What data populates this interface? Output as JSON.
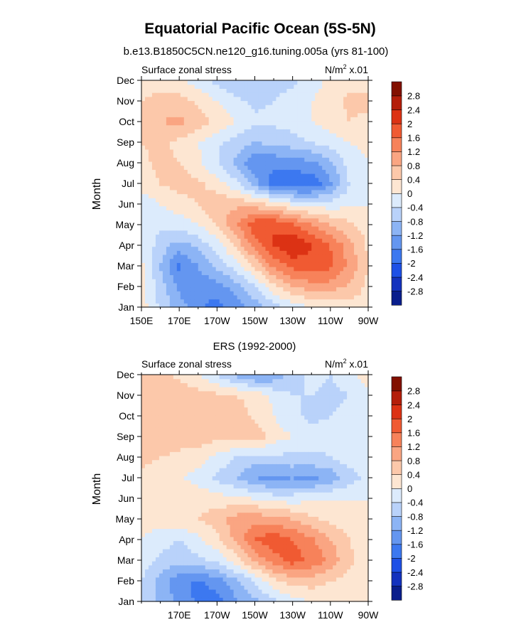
{
  "title": "Equatorial Pacific Ocean (5S-5N)",
  "colors": {
    "palette": [
      "#0a1e8c",
      "#1432be",
      "#1e50e6",
      "#3c78f0",
      "#6496f0",
      "#8cb4f5",
      "#b9d2fa",
      "#dcebfc",
      "#fde6d2",
      "#fcc8aa",
      "#faa582",
      "#f7825a",
      "#f05a32",
      "#dc3214",
      "#b41e0a",
      "#821000"
    ],
    "levels": [
      -2.8,
      -2.4,
      -2,
      -1.6,
      -1.2,
      -0.8,
      -0.4,
      0,
      0.4,
      0.8,
      1.2,
      1.6,
      2,
      2.4,
      2.8
    ]
  },
  "chart_data": [
    {
      "type": "heatmap",
      "title": "b.e13.B1850C5CN.ne120_g16.tuning.005a (yrs 81-100)",
      "left_label": "Surface zonal stress",
      "right_label": "N/m",
      "right_sup": "2",
      "right_suffix": " x.01",
      "xlabel": "",
      "ylabel": "Month",
      "x_ticks": [
        "150E",
        "170E",
        "170W",
        "150W",
        "130W",
        "110W",
        "90W"
      ],
      "x_tick_values": [
        150,
        170,
        190,
        210,
        230,
        250,
        270
      ],
      "xlim": [
        150,
        270
      ],
      "y_ticks": [
        "Jan",
        "Feb",
        "Mar",
        "Apr",
        "May",
        "Jun",
        "Jul",
        "Aug",
        "Sep",
        "Oct",
        "Nov",
        "Dec"
      ],
      "colorbar_labels": [
        "-2.8",
        "-2.4",
        "-2",
        "-1.6",
        "-1.2",
        "-0.8",
        "-0.4",
        "0",
        "0.4",
        "0.8",
        "1.2",
        "1.6",
        "2",
        "2.4",
        "2.8"
      ],
      "x": [
        150,
        160,
        170,
        180,
        190,
        200,
        210,
        220,
        230,
        240,
        250,
        260,
        270
      ],
      "z": [
        [
          0.2,
          -0.5,
          -1.0,
          -1.5,
          -1.8,
          -1.4,
          -1.0,
          -0.6,
          -0.3,
          0.0,
          0.1,
          0.2,
          0.3
        ],
        [
          0.2,
          -0.6,
          -1.3,
          -1.5,
          -1.4,
          -1.0,
          -0.5,
          0.3,
          0.8,
          1.0,
          1.0,
          0.7,
          0.3
        ],
        [
          0.1,
          -0.8,
          -1.7,
          -1.2,
          -0.7,
          -0.2,
          0.5,
          1.3,
          1.7,
          1.9,
          1.7,
          1.1,
          0.4
        ],
        [
          0.0,
          -0.6,
          -1.0,
          -0.7,
          -0.2,
          0.5,
          1.3,
          2.0,
          2.4,
          2.0,
          1.6,
          1.0,
          0.3
        ],
        [
          -0.2,
          -0.3,
          -0.2,
          0.0,
          0.4,
          1.2,
          1.9,
          2.0,
          1.7,
          1.2,
          0.8,
          0.5,
          0.2
        ],
        [
          -0.3,
          0.0,
          0.2,
          0.4,
          0.7,
          0.7,
          0.6,
          0.3,
          0.0,
          -0.2,
          -0.2,
          -0.1,
          0.0
        ],
        [
          0.2,
          0.4,
          0.6,
          0.5,
          0.2,
          -0.3,
          -1.0,
          -1.8,
          -2.0,
          -1.9,
          -1.3,
          -0.4,
          0.0
        ],
        [
          0.3,
          0.5,
          0.4,
          0.1,
          -0.4,
          -0.9,
          -1.5,
          -1.5,
          -1.4,
          -1.3,
          -0.9,
          -0.2,
          0.0
        ],
        [
          0.4,
          0.5,
          0.3,
          0.0,
          -0.3,
          -0.6,
          -0.8,
          -0.7,
          -0.6,
          -0.4,
          -0.2,
          0.0,
          0.1
        ],
        [
          0.5,
          0.8,
          0.9,
          0.6,
          0.3,
          0.0,
          -0.3,
          -0.3,
          -0.2,
          0.0,
          0.2,
          0.4,
          0.3
        ],
        [
          0.4,
          0.6,
          0.6,
          0.3,
          0.0,
          -0.3,
          -0.5,
          -0.4,
          -0.2,
          0.0,
          0.2,
          0.5,
          0.5
        ],
        [
          0.1,
          0.2,
          0.1,
          -0.2,
          -0.5,
          -0.8,
          -0.8,
          -0.6,
          -0.5,
          -0.2,
          0.1,
          0.3,
          0.2
        ]
      ]
    },
    {
      "type": "heatmap",
      "title": "ERS (1992-2000)",
      "left_label": "Surface zonal stress",
      "right_label": "N/m",
      "right_sup": "2",
      "right_suffix": " x.01",
      "xlabel": "",
      "ylabel": "Month",
      "x_ticks": [
        "170E",
        "170W",
        "150W",
        "130W",
        "110W",
        "90W"
      ],
      "x_tick_values": [
        170,
        190,
        210,
        230,
        250,
        270
      ],
      "xlim": [
        150,
        270
      ],
      "y_ticks": [
        "Jan",
        "Feb",
        "Mar",
        "Apr",
        "May",
        "Jun",
        "Jul",
        "Aug",
        "Sep",
        "Oct",
        "Nov",
        "Dec"
      ],
      "colorbar_labels": [
        "-2.8",
        "-2.4",
        "-2",
        "-1.6",
        "-1.2",
        "-0.8",
        "-0.4",
        "0",
        "0.4",
        "0.8",
        "1.2",
        "1.6",
        "2",
        "2.4",
        "2.8"
      ],
      "x": [
        150,
        160,
        170,
        180,
        190,
        200,
        210,
        220,
        230,
        240,
        250,
        260,
        270
      ],
      "z": [
        [
          -0.5,
          -0.9,
          -1.3,
          -1.7,
          -1.8,
          -1.3,
          -0.9,
          -0.5,
          -0.2,
          0.0,
          0.1,
          0.2,
          0.2
        ],
        [
          -0.4,
          -1.0,
          -1.5,
          -1.7,
          -1.4,
          -0.9,
          -0.4,
          0.3,
          0.6,
          0.6,
          0.4,
          0.2,
          0.1
        ],
        [
          -0.2,
          -0.5,
          -0.7,
          -0.5,
          -0.3,
          0.2,
          0.9,
          1.4,
          1.8,
          1.5,
          1.1,
          0.5,
          0.2
        ],
        [
          0.0,
          -0.2,
          -0.4,
          -0.1,
          0.3,
          0.9,
          1.6,
          1.9,
          1.6,
          1.3,
          0.8,
          0.4,
          0.1
        ],
        [
          0.1,
          0.2,
          0.3,
          0.4,
          0.6,
          1.0,
          1.1,
          1.0,
          0.8,
          0.5,
          0.3,
          0.2,
          0.1
        ],
        [
          0.2,
          0.3,
          0.3,
          0.3,
          0.2,
          0.1,
          0.0,
          -0.2,
          -0.2,
          -0.1,
          0.0,
          0.0,
          0.0
        ],
        [
          0.3,
          0.2,
          0.1,
          -0.2,
          -0.5,
          -0.8,
          -1.2,
          -1.3,
          -1.2,
          -1.3,
          -1.1,
          -0.6,
          -0.3
        ],
        [
          0.5,
          0.4,
          0.3,
          0.2,
          -0.1,
          -0.4,
          -0.6,
          -0.5,
          -0.5,
          -0.5,
          -0.4,
          -0.2,
          -0.1
        ],
        [
          0.6,
          0.7,
          0.6,
          0.6,
          0.5,
          0.6,
          0.7,
          0.2,
          0.0,
          -0.2,
          -0.3,
          -0.2,
          -0.1
        ],
        [
          0.6,
          0.7,
          0.8,
          0.6,
          0.5,
          0.6,
          0.3,
          0.0,
          -0.3,
          -0.5,
          -0.4,
          -0.3,
          -0.1
        ],
        [
          0.4,
          0.6,
          0.7,
          0.6,
          0.5,
          0.4,
          0.3,
          -0.1,
          -0.4,
          -0.4,
          -0.5,
          -0.4,
          -0.2
        ],
        [
          0.4,
          0.5,
          0.3,
          0.0,
          -0.4,
          -0.9,
          -1.3,
          -1.1,
          -0.6,
          -0.3,
          -0.4,
          -0.2,
          0.4
        ]
      ]
    }
  ]
}
